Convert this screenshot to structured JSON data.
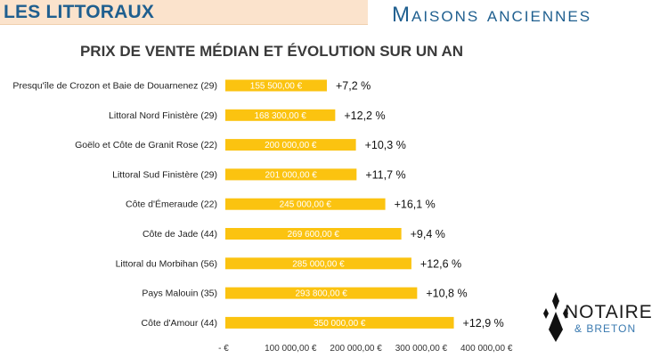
{
  "header": {
    "section_title": "LES LITTORAUX",
    "category": "Maisons anciennes"
  },
  "logo": {
    "main": "NOTAIRE",
    "sub": "& BRETON"
  },
  "chart_data": {
    "type": "bar",
    "orientation": "horizontal",
    "title": "PRIX DE VENTE MÉDIAN ET ÉVOLUTION SUR UN AN",
    "categories": [
      "Presqu'île de Crozon et Baie de Douarnenez (29)",
      "Littoral Nord Finistère (29)",
      "Goëlo et Côte de Granit Rose (22)",
      "Littoral Sud Finistère (29)",
      "Côte d'Émeraude (22)",
      "Côte de Jade (44)",
      "Littoral du Morbihan (56)",
      "Pays Malouin (35)",
      "Côte d'Amour (44)"
    ],
    "values": [
      155500,
      168300,
      200000,
      201000,
      245000,
      269600,
      285000,
      293800,
      350000
    ],
    "value_labels": [
      "155 500,00 €",
      "168 300,00 €",
      "200 000,00 €",
      "201 000,00 €",
      "245 000,00 €",
      "269 600,00 €",
      "285 000,00 €",
      "293 800,00 €",
      "350 000,00 €"
    ],
    "evolution_labels": [
      "+7,2 %",
      "+12,2 %",
      "+10,3 %",
      "+11,7 %",
      "+16,1 %",
      "+9,4 %",
      "+12,6 %",
      "+10,8 %",
      "+12,9 %"
    ],
    "xlim": [
      0,
      400000
    ],
    "x_ticks": [
      0,
      100000,
      200000,
      300000,
      400000
    ],
    "x_tick_labels": [
      "-   €",
      "100 000,00 €",
      "200 000,00 €",
      "300 000,00 €",
      "400 000,00 €"
    ],
    "grid": false,
    "bar_color": "#fbc310"
  }
}
